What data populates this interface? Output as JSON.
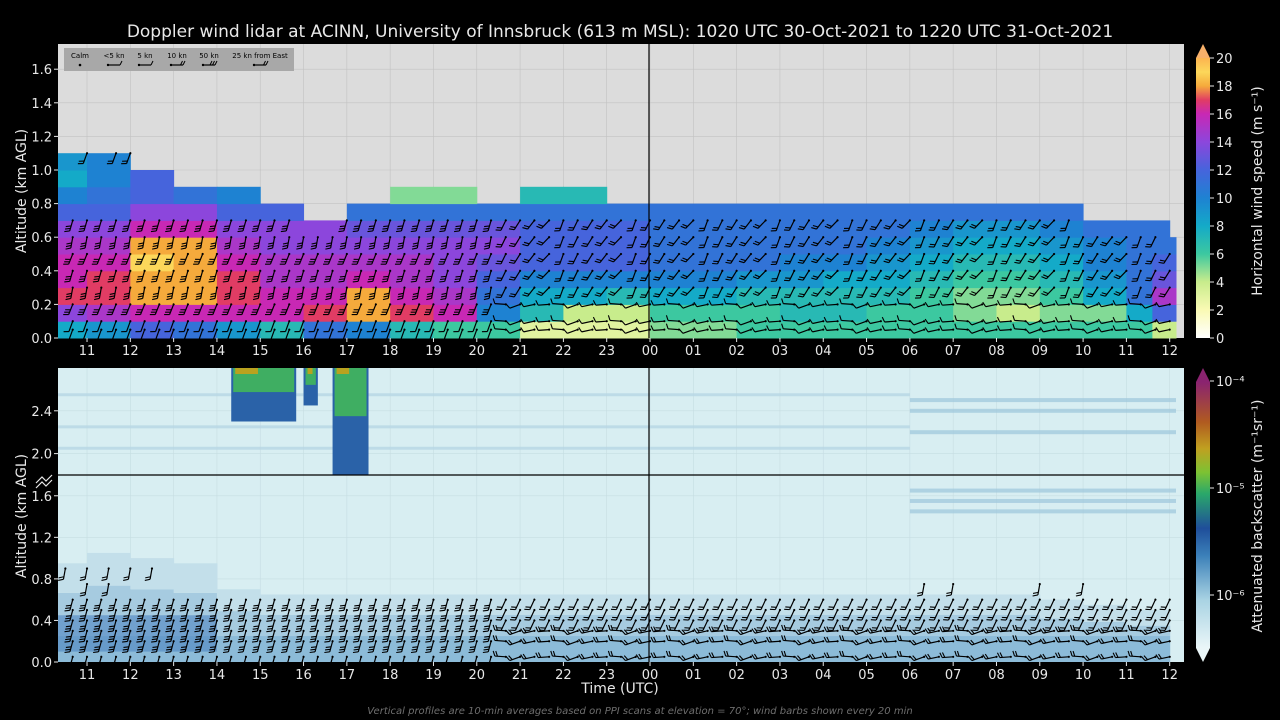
{
  "title": "Doppler wind lidar at ACINN, University of Innsbruck (613 m MSL): 1020 UTC 30-Oct-2021 to 1220 UTC 31-Oct-2021",
  "footnote": "Vertical profiles are 10-min averages based on PPI scans at elevation = 70°; wind barbs shown every 20 min",
  "colors": {
    "background": "#000000",
    "plot_bg": "#dcdcdc",
    "grid": "#c2c2c2",
    "text": "#e8e8e8",
    "barb": "#000000",
    "divider": "#000000"
  },
  "chart_data": [
    {
      "type": "heatmap",
      "name": "wind-speed",
      "xlabel": "",
      "ylabel": "Altitude (km AGL)",
      "xlim_hours": [
        10.33,
        36.33
      ],
      "x_ticks": [
        "11",
        "12",
        "13",
        "14",
        "15",
        "16",
        "17",
        "18",
        "19",
        "20",
        "21",
        "22",
        "23",
        "00",
        "01",
        "02",
        "03",
        "04",
        "05",
        "06",
        "07",
        "08",
        "09",
        "10",
        "11",
        "12"
      ],
      "ylim": [
        0,
        1.75
      ],
      "y_ticks": [
        "0.0",
        "0.2",
        "0.4",
        "0.6",
        "0.8",
        "1.0",
        "1.2",
        "1.4",
        "1.6"
      ],
      "colorbar": {
        "label": "Horizontal wind speed (m s⁻¹)",
        "min": 0,
        "max": 20,
        "ticks": [
          "0",
          "2",
          "4",
          "6",
          "8",
          "10",
          "12",
          "14",
          "16",
          "18",
          "20"
        ]
      },
      "legend": {
        "placement": "top-left",
        "entries": [
          "Calm",
          "<5 kn",
          "5 kn",
          "10 kn",
          "50 kn",
          "25 kn from East"
        ]
      },
      "wind_speed_field": {
        "time_hours": [
          10.5,
          11.5,
          12.5,
          13.5,
          14.5,
          15.5,
          16.5,
          17.5,
          18.5,
          19.5,
          20.5,
          21.5,
          22.5,
          23.5,
          24.5,
          25.5,
          26.5,
          27.5,
          28.5,
          29.5,
          30.5,
          31.5,
          32.5,
          33.5,
          34.5,
          35.5,
          36.1
        ],
        "altitude_km": [
          0.05,
          0.15,
          0.25,
          0.35,
          0.45,
          0.55,
          0.65,
          0.75,
          0.85,
          0.95,
          1.05
        ],
        "values_ms": [
          [
            8,
            9,
            12,
            11,
            9,
            7,
            11,
            10,
            7,
            6,
            6,
            3,
            3,
            3,
            5,
            5,
            6,
            6,
            6,
            6,
            6,
            6,
            6,
            6,
            6,
            6,
            4
          ],
          [
            14,
            15,
            16,
            16,
            16,
            16,
            17,
            18,
            17,
            16,
            10,
            7,
            4,
            4,
            6,
            6,
            6,
            7,
            7,
            6,
            6,
            5,
            4,
            5,
            5,
            8,
            12
          ],
          [
            17,
            17,
            18,
            18,
            17,
            16,
            16,
            18,
            16,
            15,
            11,
            8,
            8,
            7,
            8,
            8,
            7,
            7,
            7,
            7,
            6,
            5,
            5,
            6,
            8,
            11,
            15
          ],
          [
            16,
            17,
            18,
            18,
            17,
            15,
            15,
            16,
            15,
            14,
            12,
            10,
            10,
            10,
            10,
            10,
            9,
            9,
            8,
            8,
            7,
            6,
            6,
            7,
            9,
            11,
            13
          ],
          [
            16,
            16,
            19,
            18,
            16,
            15,
            15,
            15,
            15,
            14,
            13,
            12,
            12,
            12,
            11,
            11,
            11,
            10,
            10,
            9,
            8,
            7,
            7,
            8,
            10,
            11,
            12
          ],
          [
            15,
            15,
            18,
            18,
            15,
            14,
            14,
            14,
            14,
            14,
            14,
            12,
            12,
            12,
            11,
            11,
            11,
            11,
            11,
            10,
            9,
            8,
            8,
            9,
            10,
            11,
            11
          ],
          [
            14,
            14,
            16,
            16,
            14,
            14,
            14,
            13,
            13,
            13,
            13,
            12,
            12,
            12,
            11,
            11,
            11,
            11,
            11,
            11,
            10,
            9,
            9,
            10,
            11,
            11,
            null
          ],
          [
            12,
            12,
            14,
            14,
            12,
            12,
            null,
            11,
            11,
            11,
            11,
            11,
            11,
            11,
            11,
            11,
            11,
            11,
            11,
            11,
            11,
            11,
            11,
            11,
            null,
            null,
            null
          ],
          [
            10,
            11,
            12,
            11,
            10,
            null,
            null,
            null,
            5,
            5,
            null,
            7,
            7,
            null,
            null,
            null,
            null,
            null,
            null,
            null,
            null,
            null,
            null,
            null,
            null,
            null,
            null
          ],
          [
            8,
            10,
            12,
            null,
            null,
            null,
            null,
            null,
            null,
            null,
            null,
            null,
            null,
            null,
            null,
            null,
            null,
            null,
            null,
            null,
            null,
            null,
            null,
            null,
            null,
            null,
            null
          ],
          [
            9,
            10,
            null,
            null,
            null,
            null,
            null,
            null,
            null,
            null,
            null,
            null,
            null,
            null,
            null,
            null,
            null,
            null,
            null,
            null,
            null,
            null,
            null,
            null,
            null,
            null,
            null
          ]
        ]
      },
      "barb_times_hours": [
        10.33,
        10.67,
        11.0,
        11.33,
        11.67,
        12.0,
        12.33,
        12.67,
        13.0,
        13.33,
        13.67,
        14.0,
        14.33,
        14.67,
        15.0,
        15.33,
        15.67,
        16.0,
        16.33,
        16.67,
        17.0,
        17.33,
        17.67,
        18.0,
        18.33,
        18.67,
        19.0,
        19.33,
        19.67,
        20.0,
        20.33,
        20.67,
        21.0,
        21.33,
        21.67,
        22.0,
        22.33,
        22.67,
        23.0,
        23.33,
        23.67,
        24.0,
        24.33,
        24.67,
        25.0,
        25.33,
        25.67,
        26.0,
        26.33,
        26.67,
        27.0,
        27.33,
        27.67,
        28.0,
        28.33,
        28.67,
        29.0,
        29.33,
        29.67,
        30.0,
        30.33,
        30.67,
        31.0,
        31.33,
        31.67,
        32.0,
        32.33,
        32.67,
        33.0,
        33.33,
        33.67,
        34.0,
        34.33,
        34.67,
        35.0,
        35.33,
        35.67,
        36.0
      ],
      "barb_altitudes_km": [
        0.05,
        0.1,
        0.2,
        0.3,
        0.4,
        0.5,
        0.6,
        0.7
      ]
    },
    {
      "type": "heatmap",
      "name": "attenuated-backscatter",
      "xlabel": "Time (UTC)",
      "ylabel": "Altitude (km AGL)",
      "x_ticks": [
        "11",
        "12",
        "13",
        "14",
        "15",
        "16",
        "17",
        "18",
        "19",
        "20",
        "21",
        "22",
        "23",
        "00",
        "01",
        "02",
        "03",
        "04",
        "05",
        "06",
        "07",
        "08",
        "09",
        "10",
        "11",
        "12"
      ],
      "y_ticks_lower": [
        "0.0",
        "0.4",
        "0.8",
        "1.2",
        "1.6"
      ],
      "y_ticks_upper": [
        "2.0",
        "2.4"
      ],
      "ylim_lower": [
        0,
        1.8
      ],
      "ylim_upper": [
        1.75,
        2.8
      ],
      "colorbar": {
        "label": "Attenuated backscatter (m⁻¹sr⁻¹)",
        "scale": "log",
        "min": 3e-07,
        "max": 0.0001,
        "ticks": [
          "10⁻⁶",
          "10⁻⁵",
          "10⁻⁴"
        ]
      },
      "boundary_layer_top_km": [
        0.95,
        1.05,
        1.0,
        0.95,
        0.7,
        0.65,
        0.65,
        0.65,
        0.65,
        0.65,
        0.65,
        0.65,
        0.65,
        0.65,
        0.65,
        0.65,
        0.65,
        0.65,
        0.65,
        0.65,
        0.65,
        0.65,
        0.65,
        0.6,
        0.55,
        0.5
      ],
      "cloud_events": [
        {
          "start_hour": 14.33,
          "end_hour": 15.83,
          "base_km": 2.3,
          "top_km": 2.8
        },
        {
          "start_hour": 16.0,
          "end_hour": 16.33,
          "base_km": 2.45,
          "top_km": 2.8
        },
        {
          "start_hour": 16.67,
          "end_hour": 17.5,
          "base_km": 1.8,
          "top_km": 2.8
        }
      ]
    }
  ]
}
